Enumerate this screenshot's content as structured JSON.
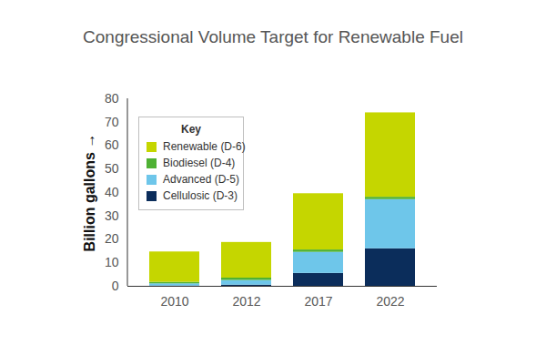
{
  "chart_data": {
    "type": "bar",
    "stacked": true,
    "title": "Congressional Volume Target for Renewable Fuel",
    "y_label": "Billion gallons",
    "legend_title": "Key",
    "legend": "top-left",
    "grid": false,
    "categories": [
      "2010",
      "2012",
      "2017",
      "2022"
    ],
    "series": [
      {
        "name": "Cellulosic (D-3)",
        "color": "#0b2d5b",
        "values": [
          0.1,
          0.5,
          5.5,
          16
        ]
      },
      {
        "name": "Advanced (D-5)",
        "color": "#6ec6ea",
        "values": [
          0.95,
          2,
          9,
          21
        ]
      },
      {
        "name": "Biodiesel (D-4)",
        "color": "#4fb134",
        "values": [
          0.65,
          1,
          1,
          1
        ]
      },
      {
        "name": "Renewable (D-6)",
        "color": "#c5d600",
        "values": [
          12.95,
          15.2,
          24,
          36
        ]
      }
    ],
    "ylim": [
      0,
      80
    ],
    "yticks": [
      0,
      10,
      20,
      30,
      40,
      50,
      60,
      70,
      80
    ]
  }
}
